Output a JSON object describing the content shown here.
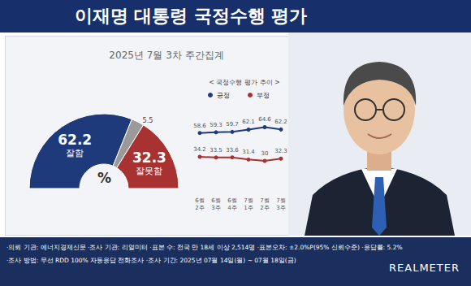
{
  "title": "이재명 대통령 국정수행 평가",
  "subtitle": "2025년 7월 3차 주간집계",
  "chart_data": [
    {
      "type": "pie",
      "categories": [
        "잘함",
        null,
        "잘못함"
      ],
      "values": [
        62.2,
        5.5,
        32.3
      ],
      "colors": [
        "#1f3a7a",
        "#9a9a9a",
        "#a83232"
      ],
      "data_labels": true,
      "center_label": "%"
    },
    {
      "type": "line",
      "title": "< 국정수행 평가 추이 >",
      "categories": [
        "6월 2주",
        "6월 3주",
        "6월 4주",
        "7월 1주",
        "7월 2주",
        "7월 3주"
      ],
      "series": [
        {
          "name": "긍정",
          "color": "#1f3a7a",
          "values": [
            58.6,
            59.3,
            59.7,
            62.1,
            64.6,
            62.2
          ]
        },
        {
          "name": "부정",
          "color": "#a83232",
          "values": [
            34.2,
            33.5,
            33.6,
            31.4,
            30.0,
            32.3
          ]
        }
      ],
      "ylim": [
        0,
        80
      ],
      "yticks": [
        0,
        20,
        40,
        60,
        80
      ],
      "tick_labels": "x",
      "grid": false,
      "legend": "top",
      "data_labels": true,
      "marker": "circle"
    }
  ],
  "footer": {
    "lines": [
      "·의뢰 기관: 에너지경제신문 ·조사 기관: 리얼미터 ·표본 수: 전국 만 18세 이상 2,514명 ·표본오차: ±2.0%P(95% 신뢰수준) ·응답률: 5.2%",
      "·조사 방법: 무선 RDD 100% 자동응답 전화조사 ·조사 기간: 2025년 07월 14일(월) ~ 07월 18일(금)"
    ],
    "brand": "REALMETER"
  }
}
